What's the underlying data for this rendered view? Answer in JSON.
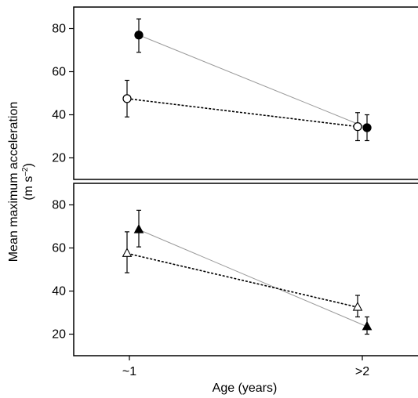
{
  "chart_data": [
    {
      "type": "line",
      "panel": "top",
      "categories": [
        "~1",
        ">2"
      ],
      "ylim": [
        10,
        90
      ],
      "yticks": [
        20,
        40,
        60,
        80
      ],
      "grid": false,
      "series": [
        {
          "marker": "filled-circle",
          "line": "solid",
          "line_color": "#9a9a9a",
          "values": [
            77,
            34
          ],
          "err_low": [
            69,
            28
          ],
          "err_high": [
            84.5,
            40
          ]
        },
        {
          "marker": "open-circle",
          "line": "dotted",
          "line_color": "#000000",
          "values": [
            47.5,
            34.5
          ],
          "err_low": [
            39,
            28
          ],
          "err_high": [
            56,
            41
          ]
        }
      ]
    },
    {
      "type": "line",
      "panel": "bottom",
      "categories": [
        "~1",
        ">2"
      ],
      "ylim": [
        10,
        90
      ],
      "yticks": [
        20,
        40,
        60,
        80
      ],
      "grid": false,
      "series": [
        {
          "marker": "filled-triangle",
          "line": "solid",
          "line_color": "#9a9a9a",
          "values": [
            68.5,
            23.5
          ],
          "err_low": [
            60.5,
            20
          ],
          "err_high": [
            77.5,
            28
          ]
        },
        {
          "marker": "open-triangle",
          "line": "dotted",
          "line_color": "#000000",
          "values": [
            57.5,
            32.5
          ],
          "err_low": [
            48.5,
            28
          ],
          "err_high": [
            67.5,
            38
          ]
        }
      ]
    }
  ],
  "axes": {
    "ylabel_line1": "Mean maximum acceleration",
    "ylabel_unit_prefix": "(m s",
    "ylabel_unit_exp": "–2",
    "ylabel_unit_suffix": ")",
    "xlabel": "Age (years)"
  }
}
